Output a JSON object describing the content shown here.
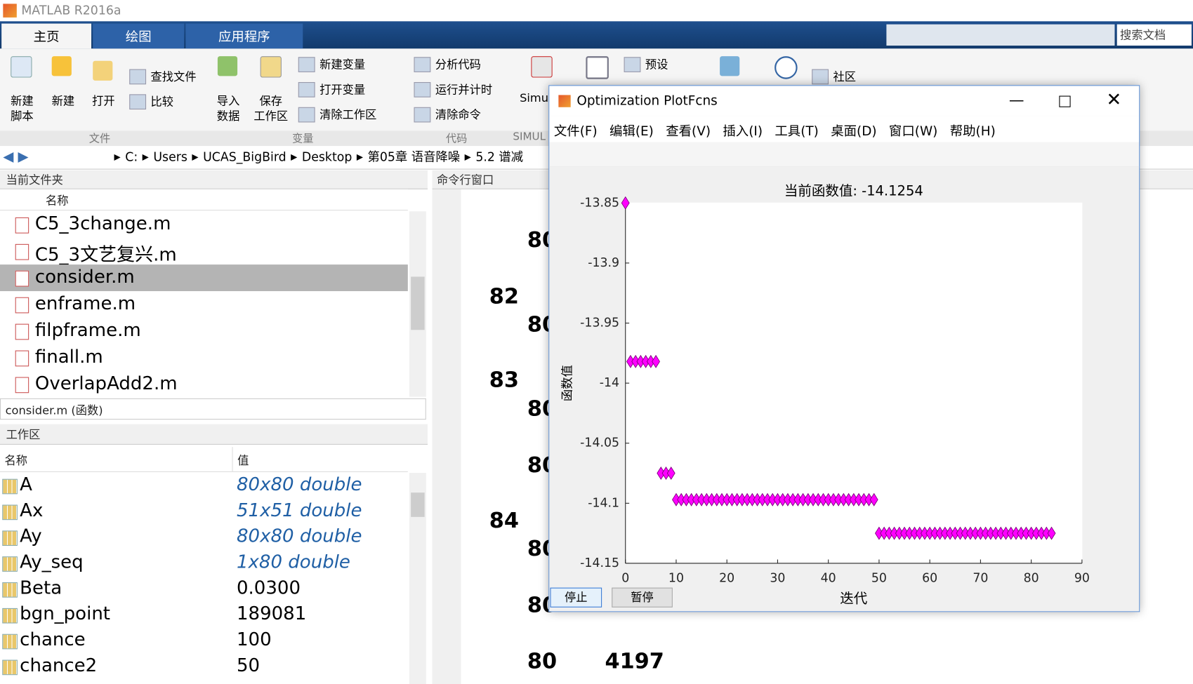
{
  "app_title": "MATLAB R2016a",
  "ribbon_tabs": [
    "主页",
    "绘图",
    "应用程序"
  ],
  "search_placeholder": "搜索文档",
  "ribbon": {
    "big_buttons": [
      [
        "新建",
        "脚本"
      ],
      [
        "新建"
      ],
      [
        "打开"
      ],
      [
        "导入",
        "数据"
      ],
      [
        "保存",
        "工作区"
      ]
    ],
    "small_buttons": [
      "查找文件",
      "比较",
      "新建变量",
      "打开变量",
      "清除工作区",
      "分析代码",
      "运行并计时",
      "清除命令",
      "预设",
      "社区"
    ],
    "partial": "Simul",
    "groups": [
      "文件",
      "变量",
      "代码",
      "SIMUL"
    ]
  },
  "address": [
    "C:",
    "Users",
    "UCAS_BigBird",
    "Desktop",
    "第05章 语音降噪",
    "5.2 谱减"
  ],
  "current_folder": {
    "title": "当前文件夹",
    "column": "名称",
    "files": [
      "C5_3change.m",
      "C5_3文艺复兴.m",
      "consider.m",
      "enframe.m",
      "filpframe.m",
      "finall.m",
      "OverlapAdd2.m"
    ],
    "selected": 2,
    "details": "consider.m  (函数)"
  },
  "workspace": {
    "title": "工作区",
    "columns": [
      "名称",
      "值"
    ],
    "rows": [
      {
        "name": "A",
        "value": "80x80 double",
        "linked": true
      },
      {
        "name": "Ax",
        "value": "51x51 double",
        "linked": true
      },
      {
        "name": "Ay",
        "value": "80x80 double",
        "linked": true
      },
      {
        "name": "Ay_seq",
        "value": "1x80 double",
        "linked": true
      },
      {
        "name": "Beta",
        "value": "0.0300",
        "linked": false
      },
      {
        "name": "bgn_point",
        "value": "189081",
        "linked": false
      },
      {
        "name": "chance",
        "value": "100",
        "linked": false
      },
      {
        "name": "chance2",
        "value": "50",
        "linked": false
      }
    ]
  },
  "command_window": {
    "title": "命令行窗口",
    "rows": [
      {
        "b": "80"
      },
      {
        "a": "82"
      },
      {
        "b": "80"
      },
      {
        "a": "83"
      },
      {
        "b": "80"
      },
      {
        "b": "80"
      },
      {
        "a": "84"
      },
      {
        "b": "80"
      },
      {
        "b": "80"
      },
      {
        "b": "80",
        "c": "4197"
      }
    ]
  },
  "figure": {
    "title": "Optimization PlotFcns",
    "menu": [
      "文件(F)",
      "编辑(E)",
      "查看(V)",
      "插入(I)",
      "工具(T)",
      "桌面(D)",
      "窗口(W)",
      "帮助(H)"
    ],
    "buttons": [
      "停止",
      "暂停"
    ]
  },
  "chart_data": {
    "type": "scatter",
    "title": "当前函数值: -14.1254",
    "xlabel": "迭代",
    "ylabel": "函数值",
    "marker": "diamond",
    "color": "#ff00ff",
    "x": [
      0,
      1,
      2,
      3,
      4,
      5,
      6,
      7,
      8,
      9,
      10,
      11,
      12,
      13,
      14,
      15,
      16,
      17,
      18,
      19,
      20,
      21,
      22,
      23,
      24,
      25,
      26,
      27,
      28,
      29,
      30,
      31,
      32,
      33,
      34,
      35,
      36,
      37,
      38,
      39,
      40,
      41,
      42,
      43,
      44,
      45,
      46,
      47,
      48,
      49,
      50,
      51,
      52,
      53,
      54,
      55,
      56,
      57,
      58,
      59,
      60,
      61,
      62,
      63,
      64,
      65,
      66,
      67,
      68,
      69,
      70,
      71,
      72,
      73,
      74,
      75,
      76,
      77,
      78,
      79,
      80,
      81,
      82,
      83,
      84
    ],
    "values": [
      -13.85,
      -13.982,
      -13.982,
      -13.982,
      -13.982,
      -13.982,
      -13.982,
      -14.075,
      -14.075,
      -14.075,
      -14.097,
      -14.097,
      -14.097,
      -14.097,
      -14.097,
      -14.097,
      -14.097,
      -14.097,
      -14.097,
      -14.097,
      -14.097,
      -14.097,
      -14.097,
      -14.097,
      -14.097,
      -14.097,
      -14.097,
      -14.097,
      -14.097,
      -14.097,
      -14.097,
      -14.097,
      -14.097,
      -14.097,
      -14.097,
      -14.097,
      -14.097,
      -14.097,
      -14.097,
      -14.097,
      -14.097,
      -14.097,
      -14.097,
      -14.097,
      -14.097,
      -14.097,
      -14.097,
      -14.097,
      -14.097,
      -14.097,
      -14.125,
      -14.125,
      -14.125,
      -14.125,
      -14.125,
      -14.125,
      -14.125,
      -14.125,
      -14.125,
      -14.125,
      -14.125,
      -14.125,
      -14.125,
      -14.125,
      -14.125,
      -14.125,
      -14.125,
      -14.125,
      -14.125,
      -14.125,
      -14.125,
      -14.125,
      -14.125,
      -14.125,
      -14.125,
      -14.125,
      -14.125,
      -14.125,
      -14.125,
      -14.125,
      -14.125,
      -14.125,
      -14.125,
      -14.125,
      -14.125
    ],
    "xlim": [
      0,
      90
    ],
    "xticks": [
      0,
      10,
      20,
      30,
      40,
      50,
      60,
      70,
      80,
      90
    ],
    "ylim": [
      -14.15,
      -13.85
    ],
    "yticks": [
      -14.15,
      -14.1,
      -14.05,
      -14,
      -13.95,
      -13.9,
      -13.85
    ],
    "grid": false
  }
}
